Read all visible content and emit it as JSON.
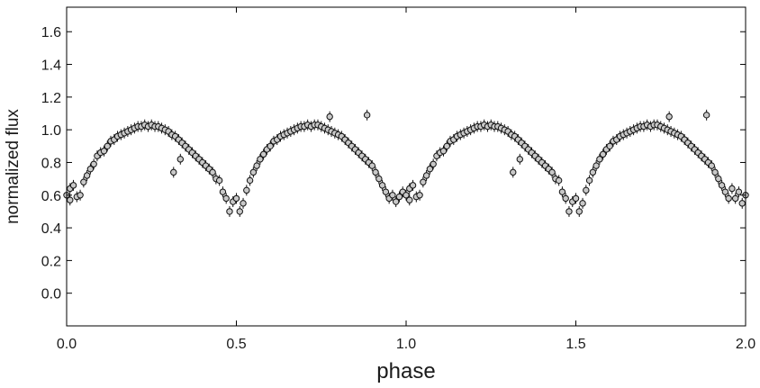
{
  "chart_data": {
    "type": "scatter",
    "title": "",
    "xlabel": "phase",
    "ylabel": "normalized flux",
    "xlim": [
      0.0,
      2.0
    ],
    "ylim": [
      -0.2,
      1.75
    ],
    "x_ticks": [
      0.0,
      0.5,
      1.0,
      1.5,
      2.0
    ],
    "x_tick_labels": [
      "0.0",
      "0.5",
      "1.0",
      "1.5",
      "2.0"
    ],
    "y_ticks": [
      0.0,
      0.2,
      0.4,
      0.6,
      0.8,
      1.0,
      1.2,
      1.4,
      1.6
    ],
    "y_tick_labels": [
      "0.0",
      "0.2",
      "0.4",
      "0.6",
      "0.8",
      "1.0",
      "1.2",
      "1.4",
      "1.6"
    ],
    "grid": false,
    "legend": "none",
    "marker": "open-circle-with-errorbar",
    "colors": {
      "marker_face": "#c8c8c8",
      "marker_edge": "#111111",
      "axis": "#000000"
    },
    "series": [
      {
        "points": [
          [
            0.0,
            0.6
          ],
          [
            0.01,
            0.57
          ],
          [
            0.01,
            0.64
          ],
          [
            0.02,
            0.66
          ],
          [
            0.03,
            0.59
          ],
          [
            0.04,
            0.6
          ],
          [
            0.05,
            0.68
          ],
          [
            0.06,
            0.72
          ],
          [
            0.07,
            0.76
          ],
          [
            0.08,
            0.79
          ],
          [
            0.09,
            0.84
          ],
          [
            0.1,
            0.86
          ],
          [
            0.11,
            0.87
          ],
          [
            0.12,
            0.9
          ],
          [
            0.13,
            0.93
          ],
          [
            0.14,
            0.94
          ],
          [
            0.15,
            0.96
          ],
          [
            0.16,
            0.97
          ],
          [
            0.17,
            0.98
          ],
          [
            0.18,
            0.99
          ],
          [
            0.19,
            1.0
          ],
          [
            0.2,
            1.01
          ],
          [
            0.21,
            1.02
          ],
          [
            0.22,
            1.02
          ],
          [
            0.23,
            1.03
          ],
          [
            0.24,
            1.02
          ],
          [
            0.25,
            1.03
          ],
          [
            0.26,
            1.02
          ],
          [
            0.27,
            1.02
          ],
          [
            0.28,
            1.01
          ],
          [
            0.29,
            1.0
          ],
          [
            0.3,
            0.99
          ],
          [
            0.31,
            0.97
          ],
          [
            0.315,
            0.74
          ],
          [
            0.32,
            0.96
          ],
          [
            0.33,
            0.94
          ],
          [
            0.335,
            0.82
          ],
          [
            0.34,
            0.92
          ],
          [
            0.35,
            0.9
          ],
          [
            0.36,
            0.88
          ],
          [
            0.37,
            0.86
          ],
          [
            0.38,
            0.84
          ],
          [
            0.39,
            0.82
          ],
          [
            0.4,
            0.8
          ],
          [
            0.41,
            0.78
          ],
          [
            0.42,
            0.76
          ],
          [
            0.43,
            0.74
          ],
          [
            0.44,
            0.7
          ],
          [
            0.45,
            0.69
          ],
          [
            0.46,
            0.62
          ],
          [
            0.47,
            0.58
          ],
          [
            0.48,
            0.5
          ],
          [
            0.49,
            0.56
          ],
          [
            0.5,
            0.58
          ],
          [
            0.51,
            0.5
          ],
          [
            0.52,
            0.55
          ],
          [
            0.53,
            0.63
          ],
          [
            0.54,
            0.69
          ],
          [
            0.55,
            0.74
          ],
          [
            0.56,
            0.78
          ],
          [
            0.57,
            0.82
          ],
          [
            0.58,
            0.85
          ],
          [
            0.59,
            0.88
          ],
          [
            0.6,
            0.9
          ],
          [
            0.61,
            0.93
          ],
          [
            0.62,
            0.94
          ],
          [
            0.63,
            0.96
          ],
          [
            0.64,
            0.97
          ],
          [
            0.65,
            0.98
          ],
          [
            0.66,
            0.99
          ],
          [
            0.67,
            1.0
          ],
          [
            0.68,
            1.01
          ],
          [
            0.69,
            1.02
          ],
          [
            0.7,
            1.02
          ],
          [
            0.71,
            1.03
          ],
          [
            0.72,
            1.02
          ],
          [
            0.73,
            1.03
          ],
          [
            0.74,
            1.03
          ],
          [
            0.75,
            1.02
          ],
          [
            0.76,
            1.01
          ],
          [
            0.77,
            1.0
          ],
          [
            0.775,
            1.08
          ],
          [
            0.78,
            0.99
          ],
          [
            0.79,
            0.98
          ],
          [
            0.8,
            0.97
          ],
          [
            0.81,
            0.96
          ],
          [
            0.82,
            0.94
          ],
          [
            0.83,
            0.92
          ],
          [
            0.84,
            0.9
          ],
          [
            0.85,
            0.88
          ],
          [
            0.86,
            0.86
          ],
          [
            0.87,
            0.84
          ],
          [
            0.88,
            0.82
          ],
          [
            0.885,
            1.09
          ],
          [
            0.89,
            0.8
          ],
          [
            0.9,
            0.78
          ],
          [
            0.91,
            0.74
          ],
          [
            0.92,
            0.7
          ],
          [
            0.93,
            0.66
          ],
          [
            0.94,
            0.62
          ],
          [
            0.95,
            0.58
          ],
          [
            0.96,
            0.6
          ],
          [
            0.97,
            0.56
          ],
          [
            0.98,
            0.59
          ],
          [
            0.99,
            0.62
          ],
          [
            1.0,
            0.6
          ],
          [
            1.01,
            0.57
          ],
          [
            1.01,
            0.64
          ],
          [
            1.02,
            0.66
          ],
          [
            1.03,
            0.59
          ],
          [
            1.04,
            0.6
          ],
          [
            1.05,
            0.68
          ],
          [
            1.06,
            0.72
          ],
          [
            1.07,
            0.76
          ],
          [
            1.08,
            0.79
          ],
          [
            1.09,
            0.84
          ],
          [
            1.1,
            0.86
          ],
          [
            1.11,
            0.87
          ],
          [
            1.12,
            0.9
          ],
          [
            1.13,
            0.93
          ],
          [
            1.14,
            0.94
          ],
          [
            1.15,
            0.96
          ],
          [
            1.16,
            0.97
          ],
          [
            1.17,
            0.98
          ],
          [
            1.18,
            0.99
          ],
          [
            1.19,
            1.0
          ],
          [
            1.2,
            1.01
          ],
          [
            1.21,
            1.02
          ],
          [
            1.22,
            1.02
          ],
          [
            1.23,
            1.03
          ],
          [
            1.24,
            1.02
          ],
          [
            1.25,
            1.03
          ],
          [
            1.26,
            1.02
          ],
          [
            1.27,
            1.02
          ],
          [
            1.28,
            1.01
          ],
          [
            1.29,
            1.0
          ],
          [
            1.3,
            0.99
          ],
          [
            1.31,
            0.97
          ],
          [
            1.315,
            0.74
          ],
          [
            1.32,
            0.96
          ],
          [
            1.33,
            0.94
          ],
          [
            1.335,
            0.82
          ],
          [
            1.34,
            0.92
          ],
          [
            1.35,
            0.9
          ],
          [
            1.36,
            0.88
          ],
          [
            1.37,
            0.86
          ],
          [
            1.38,
            0.84
          ],
          [
            1.39,
            0.82
          ],
          [
            1.4,
            0.8
          ],
          [
            1.41,
            0.78
          ],
          [
            1.42,
            0.76
          ],
          [
            1.43,
            0.74
          ],
          [
            1.44,
            0.7
          ],
          [
            1.45,
            0.69
          ],
          [
            1.46,
            0.62
          ],
          [
            1.47,
            0.58
          ],
          [
            1.48,
            0.5
          ],
          [
            1.49,
            0.56
          ],
          [
            1.5,
            0.58
          ],
          [
            1.51,
            0.5
          ],
          [
            1.52,
            0.55
          ],
          [
            1.53,
            0.63
          ],
          [
            1.54,
            0.69
          ],
          [
            1.55,
            0.74
          ],
          [
            1.56,
            0.78
          ],
          [
            1.57,
            0.82
          ],
          [
            1.58,
            0.85
          ],
          [
            1.59,
            0.88
          ],
          [
            1.6,
            0.9
          ],
          [
            1.61,
            0.93
          ],
          [
            1.62,
            0.94
          ],
          [
            1.63,
            0.96
          ],
          [
            1.64,
            0.97
          ],
          [
            1.65,
            0.98
          ],
          [
            1.66,
            0.99
          ],
          [
            1.67,
            1.0
          ],
          [
            1.68,
            1.01
          ],
          [
            1.69,
            1.02
          ],
          [
            1.7,
            1.02
          ],
          [
            1.71,
            1.03
          ],
          [
            1.72,
            1.02
          ],
          [
            1.73,
            1.03
          ],
          [
            1.74,
            1.03
          ],
          [
            1.75,
            1.02
          ],
          [
            1.76,
            1.01
          ],
          [
            1.77,
            1.0
          ],
          [
            1.775,
            1.08
          ],
          [
            1.78,
            0.99
          ],
          [
            1.79,
            0.98
          ],
          [
            1.8,
            0.97
          ],
          [
            1.81,
            0.96
          ],
          [
            1.82,
            0.94
          ],
          [
            1.83,
            0.92
          ],
          [
            1.84,
            0.9
          ],
          [
            1.85,
            0.88
          ],
          [
            1.86,
            0.86
          ],
          [
            1.87,
            0.84
          ],
          [
            1.88,
            0.82
          ],
          [
            1.885,
            1.09
          ],
          [
            1.89,
            0.8
          ],
          [
            1.9,
            0.78
          ],
          [
            1.91,
            0.74
          ],
          [
            1.92,
            0.7
          ],
          [
            1.93,
            0.66
          ],
          [
            1.94,
            0.62
          ],
          [
            1.95,
            0.58
          ],
          [
            1.96,
            0.64
          ],
          [
            1.97,
            0.58
          ],
          [
            1.98,
            0.62
          ],
          [
            1.99,
            0.55
          ],
          [
            2.0,
            0.6
          ]
        ]
      }
    ]
  }
}
